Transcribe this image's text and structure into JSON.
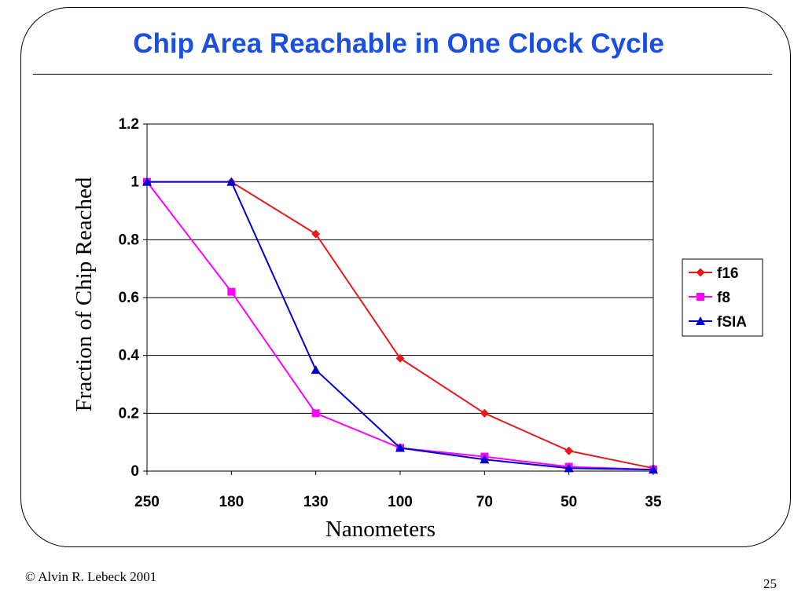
{
  "slide": {
    "title": "Chip Area Reachable in One Clock Cycle",
    "footer": "© Alvin R. Lebeck 2001",
    "page_number": "25"
  },
  "chart_data": {
    "type": "line",
    "title": "",
    "xlabel": "Nanometers",
    "ylabel": "Fraction of Chip Reached",
    "categories": [
      "250",
      "180",
      "130",
      "100",
      "70",
      "50",
      "35"
    ],
    "ylim": [
      0,
      1.2
    ],
    "yticks": [
      "0",
      "0.2",
      "0.4",
      "0.6",
      "0.8",
      "1",
      "1.2"
    ],
    "grid": true,
    "legend_position": "right",
    "series": [
      {
        "name": "f16",
        "color": "#e8191c",
        "marker": "diamond",
        "values": [
          1.0,
          1.0,
          0.82,
          0.39,
          0.2,
          0.07,
          0.01
        ]
      },
      {
        "name": "f8",
        "color": "#ff00ff",
        "marker": "square",
        "values": [
          1.0,
          0.62,
          0.2,
          0.08,
          0.05,
          0.015,
          0.005
        ]
      },
      {
        "name": "fSIA",
        "color": "#0000cc",
        "marker": "triangle",
        "values": [
          1.0,
          1.0,
          0.35,
          0.08,
          0.04,
          0.01,
          0.005
        ]
      }
    ]
  }
}
